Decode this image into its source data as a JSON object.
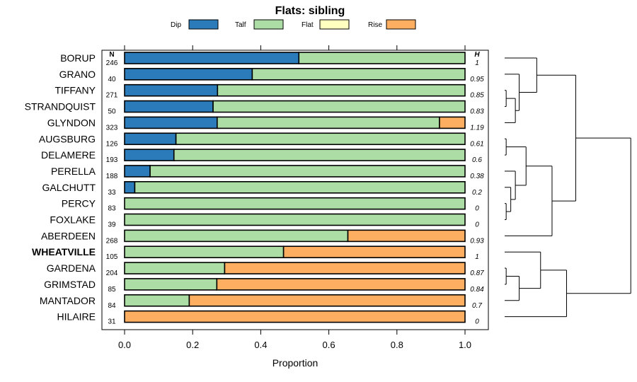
{
  "chart_data": {
    "type": "bar",
    "stacked": true,
    "orientation": "horizontal",
    "title": "Flats: sibling",
    "xlabel": "Proportion",
    "ylabel": "",
    "xlim": [
      0,
      1
    ],
    "xticks": [
      "0.0",
      "0.2",
      "0.4",
      "0.6",
      "0.8",
      "1.0"
    ],
    "n_header": "N",
    "h_header": "H",
    "legend": [
      {
        "name": "Dip",
        "color": "#2b7bba"
      },
      {
        "name": "Talf",
        "color": "#abdda4"
      },
      {
        "name": "Flat",
        "color": "#ffffbf"
      },
      {
        "name": "Rise",
        "color": "#fdae61"
      }
    ],
    "categories": [
      "BORUP",
      "GRANO",
      "TIFFANY",
      "STRANDQUIST",
      "GLYNDON",
      "AUGSBURG",
      "DELAMERE",
      "PERELLA",
      "GALCHUTT",
      "PERCY",
      "FOXLAKE",
      "ABERDEEN",
      "WHEATVILLE",
      "GARDENA",
      "GRIMSTAD",
      "MANTADOR",
      "HILAIRE"
    ],
    "highlighted": [
      "WHEATVILLE"
    ],
    "n": [
      "246",
      "40",
      "271",
      "50",
      "323",
      "126",
      "193",
      "188",
      "33",
      "83",
      "39",
      "268",
      "105",
      "204",
      "85",
      "84",
      "31"
    ],
    "h": [
      "1",
      "0.95",
      "0.85",
      "0.83",
      "1.19",
      "0.61",
      "0.6",
      "0.38",
      "0.2",
      "0",
      "0",
      "0.93",
      "1",
      "0.87",
      "0.84",
      "0.7",
      "0"
    ],
    "series": [
      {
        "name": "Dip",
        "values": [
          0.512,
          0.375,
          0.273,
          0.26,
          0.272,
          0.151,
          0.145,
          0.075,
          0.03,
          0,
          0,
          0,
          0,
          0,
          0,
          0,
          0
        ]
      },
      {
        "name": "Talf",
        "values": [
          0.488,
          0.625,
          0.727,
          0.74,
          0.653,
          0.849,
          0.855,
          0.925,
          0.97,
          1,
          1,
          0.656,
          0.467,
          0.294,
          0.271,
          0.19,
          0
        ]
      },
      {
        "name": "Flat",
        "values": [
          0,
          0,
          0,
          0,
          0,
          0,
          0,
          0,
          0,
          0,
          0,
          0,
          0,
          0,
          0,
          0,
          0
        ]
      },
      {
        "name": "Rise",
        "values": [
          0,
          0,
          0,
          0,
          0.075,
          0,
          0,
          0,
          0,
          0,
          0,
          0.344,
          0.533,
          0.706,
          0.729,
          0.81,
          1
        ]
      }
    ],
    "dendrogram": {
      "leaf_order": [
        "BORUP",
        "GRANO",
        "TIFFANY",
        "STRANDQUIST",
        "GLYNDON",
        "AUGSBURG",
        "DELAMERE",
        "PERELLA",
        "GALCHUTT",
        "PERCY",
        "FOXLAKE",
        "ABERDEEN",
        "WHEATVILLE",
        "GARDENA",
        "GRIMSTAD",
        "MANTADOR",
        "HILAIRE"
      ],
      "merges": [
        {
          "a": "L2",
          "b": "L3",
          "height": 0.02
        },
        {
          "a": "m0",
          "b": "L4",
          "height": 0.14
        },
        {
          "a": "m1",
          "b": "L1",
          "height": 0.19
        },
        {
          "a": "m2",
          "b": "L0",
          "height": 0.42
        },
        {
          "a": "L5",
          "b": "L6",
          "height": 0.02
        },
        {
          "a": "L9",
          "b": "L10",
          "height": 0.02
        },
        {
          "a": "L8",
          "b": "m5",
          "height": 0.08
        },
        {
          "a": "m6",
          "b": "L7",
          "height": 0.14
        },
        {
          "a": "m4",
          "b": "m7",
          "height": 0.28
        },
        {
          "a": "m8",
          "b": "L11",
          "height": 0.62
        },
        {
          "a": "m3",
          "b": "m9",
          "height": 0.93
        },
        {
          "a": "L13",
          "b": "L14",
          "height": 0.02
        },
        {
          "a": "m11",
          "b": "L15",
          "height": 0.19
        },
        {
          "a": "L12",
          "b": "m12",
          "height": 0.47
        },
        {
          "a": "m13",
          "b": "L16",
          "height": 0.81
        },
        {
          "a": "m10",
          "b": "m14",
          "height": 1.65
        }
      ]
    }
  }
}
